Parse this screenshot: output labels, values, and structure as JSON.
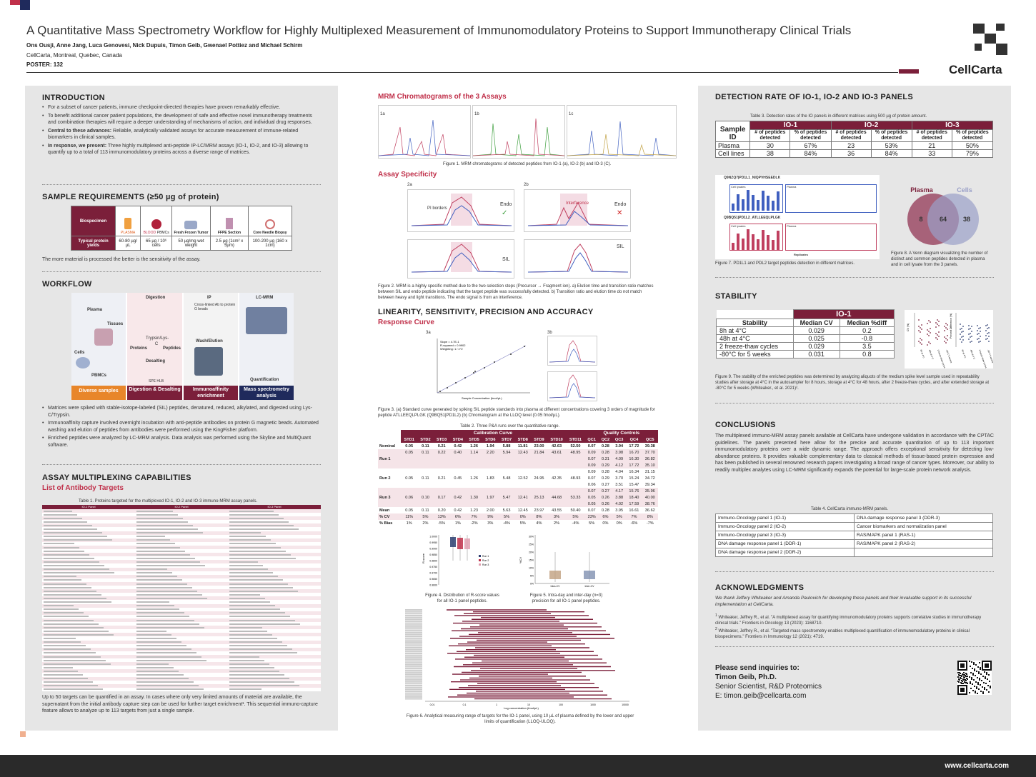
{
  "header": {
    "title": "A Quantitative Mass Spectrometry Workflow for Highly Multiplexed Measurement of Immunomodulatory Proteins to Support Immunotherapy Clinical Trials",
    "authors": "Ons Ousji, Anne Jang, Luca Genovesi, Nick Dupuis, Timon Geib, Gwenael Pottiez and Michael Schirm",
    "affiliation": "CellCarta, Montreal, Quebec, Canada",
    "poster": "POSTER: 132",
    "logo": "CellCarta"
  },
  "colors": {
    "accent": "#7b1f3a",
    "red": "#c0304a",
    "dark": "#2a2a2a"
  },
  "intro": {
    "title": "INTRODUCTION",
    "bullets": [
      {
        "lead": "",
        "text": "For a subset of cancer patients, immune checkpoint-directed therapies have proven remarkably effective."
      },
      {
        "lead": "",
        "text": "To benefit additional cancer patient populations, the development of safe and effective novel immunotherapy treatments and combination therapies will require a deeper understanding of mechanisms of action, and individual drug responses."
      },
      {
        "lead": "Central to these advances:",
        "text": "Reliable, analytically validated assays for accurate measurement of immune-related biomarkers in clinical samples."
      },
      {
        "lead": "In response, we present:",
        "text": "Three highly multiplexed anti-peptide IP-LC/MRM assays (IO-1, IO-2, and IO-3) allowing to quantify up to a total of 113 immunomodulatory proteins across a diverse range of matrices."
      }
    ]
  },
  "samples": {
    "title": "SAMPLE REQUIREMENTS (≥50 µg of protein)",
    "row1": "Biospecimen",
    "row2": "Typical protein yields",
    "items": [
      {
        "name": "PLASMA",
        "yield": "60-80 µg/µL"
      },
      {
        "name": "BLOOD",
        "sub": "PBMCs",
        "yield": "65 µg / 10⁶ cells"
      },
      {
        "name": "Fresh Frozen Tumor",
        "yield": "50 µg/mg wet weight"
      },
      {
        "name": "FFPE Section",
        "yield": "2.5 µg (1cm² x 5µm)"
      },
      {
        "name": "Core Needle Biopsy",
        "yield": "100-200 µg (160 x 1cm)"
      }
    ],
    "note": "The more material is processed the better is the sensitivity of the assay."
  },
  "workflow": {
    "title": "WORKFLOW",
    "labels": {
      "plasma": "Plasma",
      "tissues": "Tissues",
      "cells": "Cells",
      "pbmcs": "PBMCs",
      "digestion": "Digestion",
      "proteins": "Proteins",
      "peptides": "Peptides",
      "trypsin": "Trypsin/Lys-C",
      "desalting": "Desalting",
      "spe": "SPE HLB",
      "ip": "IP",
      "ab": "Cross-linked Ab to protein G beads",
      "wash": "Wash/Elution",
      "lcmrm": "LC-MRM",
      "quant": "Quantification"
    },
    "steps": [
      "Diverse samples",
      "Digestion & Desalting",
      "Immunoaffinity enrichment",
      "Mass spectrometry analysis"
    ],
    "bullets": [
      "Matrices were spiked with stable-isotope-labeled (SIL) peptides, denatured, reduced, alkylated, and digested using Lys-C/Trypsin.",
      "Immunoaffinity capture involved overnight incubation with anti-peptide antibodies on protein G magnetic beads. Automated washing and elution of peptides from antibodies were performed using the KingFisher platform.",
      "Enriched peptides were analyzed by LC-MRM analysis. Data analysis was performed using the Skyline and MultiQuant software."
    ]
  },
  "multiplex": {
    "title": "ASSAY MULTIPLEXING CAPABILITIES",
    "sub": "List of Antibody Targets",
    "cap1": "Table 1. Proteins targeted for the multiplexed IO-1, IO-2 and IO-3 immuno-MRM assay panels.",
    "panels": [
      "IO-1 Panel",
      "IO-2 Panel",
      "IO-3 Panel"
    ],
    "colhead": [
      "Gene",
      "Target Protein Name"
    ],
    "text": "Up to 50 targets can be quantified in an assay. In cases where only very limited amounts of material are available, the supernatant from the initial antibody capture step can be used for further target enrichment¹. This sequential immuno-capture feature allows to analyze up to 113 targets from just a single sample."
  },
  "mrm": {
    "title": "MRM Chromatograms of the 3 Assays",
    "panels": [
      "1a",
      "1b",
      "1c"
    ],
    "cap1": "Figure 1. MRM chromatograms of detected peptides from IO-1 (a), IO-2 (b) and IO-3 (C).",
    "spec": "Assay Specificity",
    "p2a": "2a",
    "p2b": "2b",
    "endo": "Endo",
    "sil": "SIL",
    "pib": "PI borders",
    "interf": "Interference",
    "rt": "Retention Time",
    "intens": "Intensity (10^3)",
    "cap2": "Figure 2. MRM is a highly specific method due to the two selection steps (Precursor → Fragment ion). a) Elution time and transition ratio matches between SIL and endo peptide indicating that the target peptide was successfully detected. b) Transition ratio and elution time do not match between heavy and light transitions. The endo signal is from an interference."
  },
  "linearity": {
    "title": "LINEARITY, SENSITIVITY, PRECISION AND ACCURACY",
    "sub": "Response Curve",
    "p3a": "3a",
    "p3b": "3b",
    "slope": "Slope = 4.7E-1",
    "rsq": "R-squared = 0.9902",
    "weight": "Weighting: 1 / x^2",
    "xlab": "Sample Concentration (fmol/µL)",
    "ylab": "Area Light/Area Heavy",
    "cap3": "Figure 3. (a) Standard curve generated by spiking SIL peptide standards into plasma at different concentrations covering 3 orders of magnitude for peptide ATLLEEQLPLGK (Q9BQ51|PD1L2) (b) Chromatogram at the LLOQ level (0.05 fmol/µL).",
    "cap_t2": "Table 2. Three P&A runs over the quantitative range.",
    "t2": {
      "calib": "Calibration Curve",
      "qc": "Quality Controls",
      "cols": [
        "STD1",
        "STD2",
        "STD3",
        "STD4",
        "STD5",
        "STD6",
        "STD7",
        "STD8",
        "STD9",
        "STD10",
        "STD11",
        "QC1",
        "QC2",
        "QC3",
        "QC4",
        "QC5"
      ],
      "nominal": [
        "0.05",
        "0.11",
        "0.21",
        "0.42",
        "1.26",
        "1.94",
        "5.88",
        "11.81",
        "23.00",
        "42.63",
        "52.50",
        "0.07",
        "0.28",
        "3.94",
        "17.72",
        "39.38"
      ],
      "runs": [
        {
          "label": "Run 1",
          "rows": [
            [
              "0.05",
              "0.11",
              "0.22",
              "0.40",
              "1.14",
              "2.20",
              "5.94",
              "12.43",
              "21.84",
              "43.61",
              "48.95",
              "0.09",
              "0.28",
              "3.98",
              "16.70",
              "37.70"
            ],
            [
              "",
              "",
              "",
              "",
              "",
              "",
              "",
              "",
              "",
              "",
              "",
              "0.07",
              "0.31",
              "4.09",
              "16.30",
              "36.82"
            ],
            [
              "",
              "",
              "",
              "",
              "",
              "",
              "",
              "",
              "",
              "",
              "",
              "0.09",
              "0.29",
              "4.12",
              "17.72",
              "35.10"
            ]
          ]
        },
        {
          "label": "Run 2",
          "rows": [
            [
              "",
              "",
              "",
              "",
              "",
              "",
              "",
              "",
              "",
              "",
              "",
              "0.09",
              "0.28",
              "4.04",
              "16.34",
              "31.15"
            ],
            [
              "0.05",
              "0.11",
              "0.21",
              "0.45",
              "1.26",
              "1.83",
              "5.48",
              "12.52",
              "24.95",
              "42.35",
              "48.93",
              "0.07",
              "0.29",
              "3.70",
              "15.24",
              "34.72"
            ],
            [
              "",
              "",
              "",
              "",
              "",
              "",
              "",
              "",
              "",
              "",
              "",
              "0.06",
              "0.27",
              "3.51",
              "15.47",
              "39.34"
            ]
          ]
        },
        {
          "label": "Run 3",
          "rows": [
            [
              "",
              "",
              "",
              "",
              "",
              "",
              "",
              "",
              "",
              "",
              "",
              "0.07",
              "0.27",
              "4.17",
              "15.76",
              "35.96"
            ],
            [
              "0.06",
              "0.10",
              "0.17",
              "0.42",
              "1.30",
              "1.97",
              "5.47",
              "12.41",
              "25.13",
              "44.68",
              "53.33",
              "0.05",
              "0.26",
              "3.88",
              "18.40",
              "40.00"
            ],
            [
              "",
              "",
              "",
              "",
              "",
              "",
              "",
              "",
              "",
              "",
              "",
              "0.05",
              "0.26",
              "4.02",
              "17.59",
              "38.76"
            ]
          ]
        }
      ],
      "mean": [
        "0.05",
        "0.11",
        "0.20",
        "0.42",
        "1.23",
        "2.00",
        "5.63",
        "12.45",
        "23.97",
        "43.55",
        "50.40",
        "0.07",
        "0.28",
        "3.95",
        "16.61",
        "36.62"
      ],
      "cv": [
        "11%",
        "5%",
        "13%",
        "6%",
        "7%",
        "9%",
        "5%",
        "0%",
        "8%",
        "3%",
        "5%",
        "23%",
        "6%",
        "5%",
        "7%",
        "8%"
      ],
      "bias": [
        "1%",
        "2%",
        "-5%",
        "1%",
        "-2%",
        "3%",
        "-4%",
        "5%",
        "4%",
        "2%",
        "-4%",
        "5%",
        "0%",
        "0%",
        "-6%",
        "-7%"
      ],
      "labels": {
        "nominal": "Nominal",
        "cv": "% CV",
        "bias": "% Bias",
        "mean": "Mean"
      }
    },
    "cap4": "Figure 4. Distribution of R-score values for all IO-1 panel peptides.",
    "cap5": "Figure 5. Intra-day and inter-day (n=3) precision for all IO-1 panel peptides.",
    "fig4": {
      "ylab": "R-score",
      "ticks": [
        "1.0000",
        "0.9950",
        "0.9900",
        "0.9850",
        "0.9800",
        "0.9750",
        "0.9700",
        "0.9650",
        "0.9600"
      ],
      "legend": [
        "Run 1",
        "Run 2",
        "Run 3"
      ]
    },
    "fig5": {
      "ylab": "%CV",
      "ticks": [
        "30%",
        "25%",
        "20%",
        "15%",
        "10%",
        "5%",
        "0%"
      ],
      "cats": [
        "Intra-CV",
        "Inter-CV"
      ]
    },
    "cap6": "Figure 6. Analytical measuring range of targets for the IO-1 panel, using 10 µL of plasma defined by the lower and upper limits of quantification (LLOQ-ULOQ).",
    "f6x": "Log concentration (fmol/µL)",
    "f6ticks": [
      "0.01",
      "0.1",
      "1",
      "10",
      "100",
      "1000",
      "10000"
    ]
  },
  "detection": {
    "title": "DETECTION RATE OF IO-1, IO-2 AND IO-3 PANELS",
    "cap3": "Table 3. Detection rates of the IO panels in different matrices using 500 µg of protein amount.",
    "sample": "Sample ID",
    "panels": [
      "IO-1",
      "IO-2",
      "IO-3"
    ],
    "sub": [
      "# of peptides detected",
      "% of peptides detected"
    ],
    "rows": [
      {
        "id": "Plasma",
        "v": [
          "30",
          "67%",
          "23",
          "53%",
          "21",
          "50%"
        ]
      },
      {
        "id": "Cell lines",
        "v": [
          "38",
          "84%",
          "36",
          "84%",
          "33",
          "79%"
        ]
      }
    ],
    "fig7a": "Q9NZQ7|PD1L1_NIQPVHSEEDLK",
    "fig7b": "Q9BQ51|PD1L2_ATLLEEQLPLGK",
    "lysates": "Cell lysates",
    "plasma": "Plasma",
    "repl": "Replicates",
    "yl": "Peak area (10^4)",
    "cap7": "Figure 7. PD1L1 and PDL2 target peptides detection in different matrices.",
    "venn": {
      "a": "Plasma",
      "b": "Cells",
      "left": "8",
      "mid": "64",
      "right": "38"
    },
    "cap8": "Figure 8. A Venn diagram visualizing the number of distinct and common peptides detected in plasma and in cell lysate from the 3 panels."
  },
  "stability": {
    "title": "STABILITY",
    "panel": "IO-1",
    "cols": [
      "Stability",
      "Median CV",
      "Median %diff"
    ],
    "rows": [
      [
        "8h at 4°C",
        "0.029",
        "0.2"
      ],
      [
        "48h at 4°C",
        "0.025",
        "-0.8"
      ],
      [
        "2 freeze-thaw cycles",
        "0.029",
        "3.5"
      ],
      [
        "-80°C for 5 weeks",
        "0.031",
        "0.8"
      ]
    ],
    "ylA": "CV (%)",
    "ylB": "Percent Difference (%)",
    "conds": [
      "8h at 4°C",
      "48h at 4°C",
      "2 freeze-thaw cycles",
      "-80°C 5 weeks"
    ],
    "cap9": "Figure 9. The stability of the enriched peptides was determined by analyzing aliquots of the medium spike level sample used in repeatability studies after storage at 4°C in the autosampler for 8 hours, storage at 4°C for 48 hours, after 2 freeze-thaw cycles, and after extended storage at -80°C for 5 weeks (Whiteaker., et al. 2021)²."
  },
  "conclusions": {
    "title": "CONCLUSIONS",
    "text": "The multiplexed immuno-MRM assay panels available at CellCarta have undergone validation in accordance with the CPTAC guidelines. The panels presented here allow for the precise and accurate quantitation of up to 113 important immunomodulatory proteins over a wide dynamic range. The approach offers exceptional sensitivity for detecting low-abundance proteins. It provides valuable complementary data to classical methods of tissue-based protein expression and has been published in several renowned research papers investigating a broad range of cancer types. Moreover, our ability to readily multiplex analytes using LC-MRM significantly expands the potential for large-scale protein network analysis.",
    "cap4": "Table 4. CellCarta immuno-MRM panels.",
    "t4": [
      [
        "Immuno-Oncology panel 1 (IO-1)",
        "DNA damage response panel 3 (DDR-3)"
      ],
      [
        "Immuno-Oncology panel 2 (IO-2)",
        "Cancer biomarkers and normalization panel"
      ],
      [
        "Immuno-Oncology panel 3 (IO-3)",
        "RAS/MAPK panel 1 (RAS-1)"
      ],
      [
        "DNA damage response panel 1 (DDR-1)",
        "RAS/MAPK panel 2 (RAS-2)"
      ],
      [
        "DNA damage response panel 2 (DDR-2)",
        ""
      ]
    ]
  },
  "ack": {
    "title": "ACKNOWLEDGMENTS",
    "text": "We thank Jeffery Whiteaker and Amanda Paulovich for developing these panels and their invaluable support in its successful implementation at CellCarta.",
    "refs": [
      {
        "n": "1",
        "t": "Whiteaker, Jeffrey R., et al. \"A multiplexed assay for quantifying immunomodulatory proteins supports correlative studies in immunotherapy clinical trials.\" Frontiers in Oncology 13 (2023): 1168710."
      },
      {
        "n": "2",
        "t": "Whiteaker, Jeffrey R., et al. \"Targeted mass spectrometry enables multiplexed quantification of immunomodulatory proteins in clinical biospecimens.\" Frontiers in Immunology 12 (2021): 4719."
      }
    ]
  },
  "contact": {
    "lead": "Please send inquiries to:",
    "name": "Timon Geib, Ph.D.",
    "role": "Senior Scientist, R&D Proteomics",
    "email": "E: timon.geib@cellcarta.com"
  },
  "footer": {
    "url": "www.cellcarta.com"
  }
}
